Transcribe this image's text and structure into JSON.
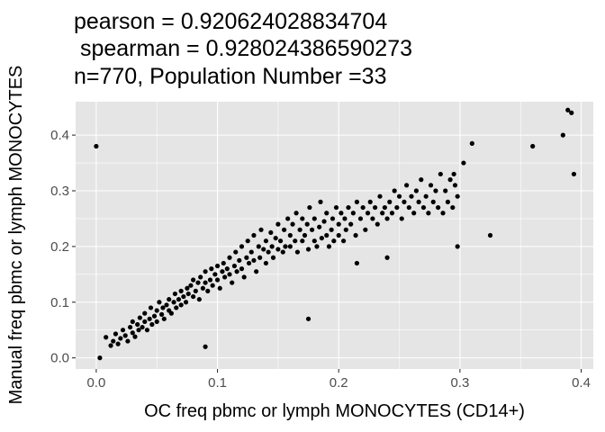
{
  "chart_data": {
    "type": "scatter",
    "title_lines": [
      "pearson = 0.920624028834704",
      " spearman = 0.928024386590273",
      "n=770, Population Number =33"
    ],
    "xlabel": "OC freq pbmc or lymph MONOCYTES (CD14+)",
    "ylabel": "Manual freq pbmc or lymph MONOCYTES",
    "xlim": [
      -0.017,
      0.41
    ],
    "ylim": [
      -0.02,
      0.46
    ],
    "xticks": [
      0.0,
      0.1,
      0.2,
      0.3,
      0.4
    ],
    "xtick_labels": [
      "0.0",
      "0.1",
      "0.2",
      "0.3",
      "0.4"
    ],
    "yticks": [
      0.0,
      0.1,
      0.2,
      0.3,
      0.4
    ],
    "ytick_labels": [
      "0.0",
      "0.1",
      "0.2",
      "0.3",
      "0.4"
    ],
    "grid": true,
    "background_color": "#e5e5e5",
    "grid_color": "#ffffff",
    "point_color": "#000000",
    "points": [
      [
        0.003,
        0.0
      ],
      [
        0.008,
        0.037
      ],
      [
        0.012,
        0.022
      ],
      [
        0.014,
        0.03
      ],
      [
        0.016,
        0.043
      ],
      [
        0.018,
        0.025
      ],
      [
        0.02,
        0.035
      ],
      [
        0.022,
        0.05
      ],
      [
        0.024,
        0.04
      ],
      [
        0.026,
        0.03
      ],
      [
        0.028,
        0.055
      ],
      [
        0.03,
        0.045
      ],
      [
        0.03,
        0.065
      ],
      [
        0.032,
        0.038
      ],
      [
        0.034,
        0.06
      ],
      [
        0.035,
        0.05
      ],
      [
        0.036,
        0.072
      ],
      [
        0.038,
        0.055
      ],
      [
        0.04,
        0.065
      ],
      [
        0.04,
        0.08
      ],
      [
        0.042,
        0.05
      ],
      [
        0.044,
        0.07
      ],
      [
        0.045,
        0.09
      ],
      [
        0.046,
        0.06
      ],
      [
        0.048,
        0.075
      ],
      [
        0.05,
        0.085
      ],
      [
        0.05,
        0.065
      ],
      [
        0.052,
        0.1
      ],
      [
        0.054,
        0.078
      ],
      [
        0.055,
        0.09
      ],
      [
        0.056,
        0.07
      ],
      [
        0.058,
        0.095
      ],
      [
        0.06,
        0.085
      ],
      [
        0.06,
        0.105
      ],
      [
        0.062,
        0.08
      ],
      [
        0.064,
        0.1
      ],
      [
        0.065,
        0.115
      ],
      [
        0.066,
        0.09
      ],
      [
        0.068,
        0.105
      ],
      [
        0.07,
        0.095
      ],
      [
        0.07,
        0.12
      ],
      [
        0.072,
        0.11
      ],
      [
        0.074,
        0.1
      ],
      [
        0.075,
        0.125
      ],
      [
        0.076,
        0.115
      ],
      [
        0.078,
        0.13
      ],
      [
        0.08,
        0.11
      ],
      [
        0.08,
        0.14
      ],
      [
        0.082,
        0.12
      ],
      [
        0.084,
        0.135
      ],
      [
        0.085,
        0.105
      ],
      [
        0.086,
        0.145
      ],
      [
        0.088,
        0.125
      ],
      [
        0.09,
        0.135
      ],
      [
        0.09,
        0.155
      ],
      [
        0.092,
        0.12
      ],
      [
        0.094,
        0.14
      ],
      [
        0.095,
        0.16
      ],
      [
        0.096,
        0.13
      ],
      [
        0.098,
        0.15
      ],
      [
        0.1,
        0.14
      ],
      [
        0.1,
        0.165
      ],
      [
        0.102,
        0.125
      ],
      [
        0.104,
        0.155
      ],
      [
        0.105,
        0.17
      ],
      [
        0.106,
        0.145
      ],
      [
        0.108,
        0.16
      ],
      [
        0.11,
        0.15
      ],
      [
        0.11,
        0.18
      ],
      [
        0.112,
        0.135
      ],
      [
        0.114,
        0.165
      ],
      [
        0.115,
        0.19
      ],
      [
        0.116,
        0.155
      ],
      [
        0.118,
        0.175
      ],
      [
        0.12,
        0.16
      ],
      [
        0.12,
        0.2
      ],
      [
        0.122,
        0.145
      ],
      [
        0.124,
        0.18
      ],
      [
        0.125,
        0.21
      ],
      [
        0.126,
        0.17
      ],
      [
        0.128,
        0.19
      ],
      [
        0.13,
        0.175
      ],
      [
        0.13,
        0.22
      ],
      [
        0.132,
        0.155
      ],
      [
        0.134,
        0.2
      ],
      [
        0.135,
        0.18
      ],
      [
        0.136,
        0.23
      ],
      [
        0.138,
        0.195
      ],
      [
        0.14,
        0.17
      ],
      [
        0.14,
        0.21
      ],
      [
        0.142,
        0.19
      ],
      [
        0.144,
        0.225
      ],
      [
        0.145,
        0.2
      ],
      [
        0.146,
        0.18
      ],
      [
        0.148,
        0.215
      ],
      [
        0.15,
        0.195
      ],
      [
        0.15,
        0.24
      ],
      [
        0.152,
        0.21
      ],
      [
        0.154,
        0.19
      ],
      [
        0.155,
        0.23
      ],
      [
        0.156,
        0.2
      ],
      [
        0.158,
        0.25
      ],
      [
        0.16,
        0.22
      ],
      [
        0.16,
        0.2
      ],
      [
        0.162,
        0.24
      ],
      [
        0.164,
        0.21
      ],
      [
        0.165,
        0.26
      ],
      [
        0.166,
        0.19
      ],
      [
        0.168,
        0.23
      ],
      [
        0.17,
        0.21
      ],
      [
        0.17,
        0.25
      ],
      [
        0.172,
        0.22
      ],
      [
        0.174,
        0.24
      ],
      [
        0.175,
        0.195
      ],
      [
        0.176,
        0.27
      ],
      [
        0.178,
        0.23
      ],
      [
        0.18,
        0.21
      ],
      [
        0.18,
        0.25
      ],
      [
        0.182,
        0.2
      ],
      [
        0.184,
        0.235
      ],
      [
        0.185,
        0.28
      ],
      [
        0.186,
        0.215
      ],
      [
        0.188,
        0.245
      ],
      [
        0.19,
        0.22
      ],
      [
        0.19,
        0.26
      ],
      [
        0.192,
        0.2
      ],
      [
        0.194,
        0.23
      ],
      [
        0.195,
        0.25
      ],
      [
        0.196,
        0.21
      ],
      [
        0.198,
        0.27
      ],
      [
        0.2,
        0.22
      ],
      [
        0.2,
        0.24
      ],
      [
        0.202,
        0.26
      ],
      [
        0.204,
        0.21
      ],
      [
        0.205,
        0.25
      ],
      [
        0.206,
        0.23
      ],
      [
        0.208,
        0.27
      ],
      [
        0.21,
        0.24
      ],
      [
        0.212,
        0.26
      ],
      [
        0.214,
        0.22
      ],
      [
        0.215,
        0.28
      ],
      [
        0.218,
        0.25
      ],
      [
        0.22,
        0.27
      ],
      [
        0.222,
        0.23
      ],
      [
        0.224,
        0.26
      ],
      [
        0.226,
        0.28
      ],
      [
        0.228,
        0.25
      ],
      [
        0.23,
        0.27
      ],
      [
        0.232,
        0.24
      ],
      [
        0.234,
        0.29
      ],
      [
        0.236,
        0.26
      ],
      [
        0.238,
        0.27
      ],
      [
        0.24,
        0.25
      ],
      [
        0.242,
        0.28
      ],
      [
        0.244,
        0.26
      ],
      [
        0.246,
        0.3
      ],
      [
        0.248,
        0.27
      ],
      [
        0.25,
        0.29
      ],
      [
        0.252,
        0.25
      ],
      [
        0.254,
        0.28
      ],
      [
        0.256,
        0.31
      ],
      [
        0.258,
        0.27
      ],
      [
        0.26,
        0.29
      ],
      [
        0.262,
        0.26
      ],
      [
        0.264,
        0.3
      ],
      [
        0.266,
        0.28
      ],
      [
        0.268,
        0.32
      ],
      [
        0.27,
        0.27
      ],
      [
        0.272,
        0.29
      ],
      [
        0.274,
        0.26
      ],
      [
        0.276,
        0.31
      ],
      [
        0.278,
        0.28
      ],
      [
        0.28,
        0.3
      ],
      [
        0.282,
        0.27
      ],
      [
        0.284,
        0.33
      ],
      [
        0.286,
        0.26
      ],
      [
        0.288,
        0.3
      ],
      [
        0.29,
        0.28
      ],
      [
        0.292,
        0.32
      ],
      [
        0.294,
        0.27
      ],
      [
        0.296,
        0.31
      ],
      [
        0.298,
        0.29
      ],
      [
        0.0,
        0.38
      ],
      [
        0.385,
        0.4
      ],
      [
        0.389,
        0.445
      ],
      [
        0.392,
        0.44
      ],
      [
        0.394,
        0.33
      ],
      [
        0.36,
        0.38
      ],
      [
        0.31,
        0.385
      ],
      [
        0.303,
        0.35
      ],
      [
        0.295,
        0.33
      ],
      [
        0.325,
        0.22
      ],
      [
        0.298,
        0.2
      ],
      [
        0.24,
        0.18
      ],
      [
        0.215,
        0.17
      ],
      [
        0.175,
        0.07
      ],
      [
        0.09,
        0.02
      ]
    ]
  }
}
